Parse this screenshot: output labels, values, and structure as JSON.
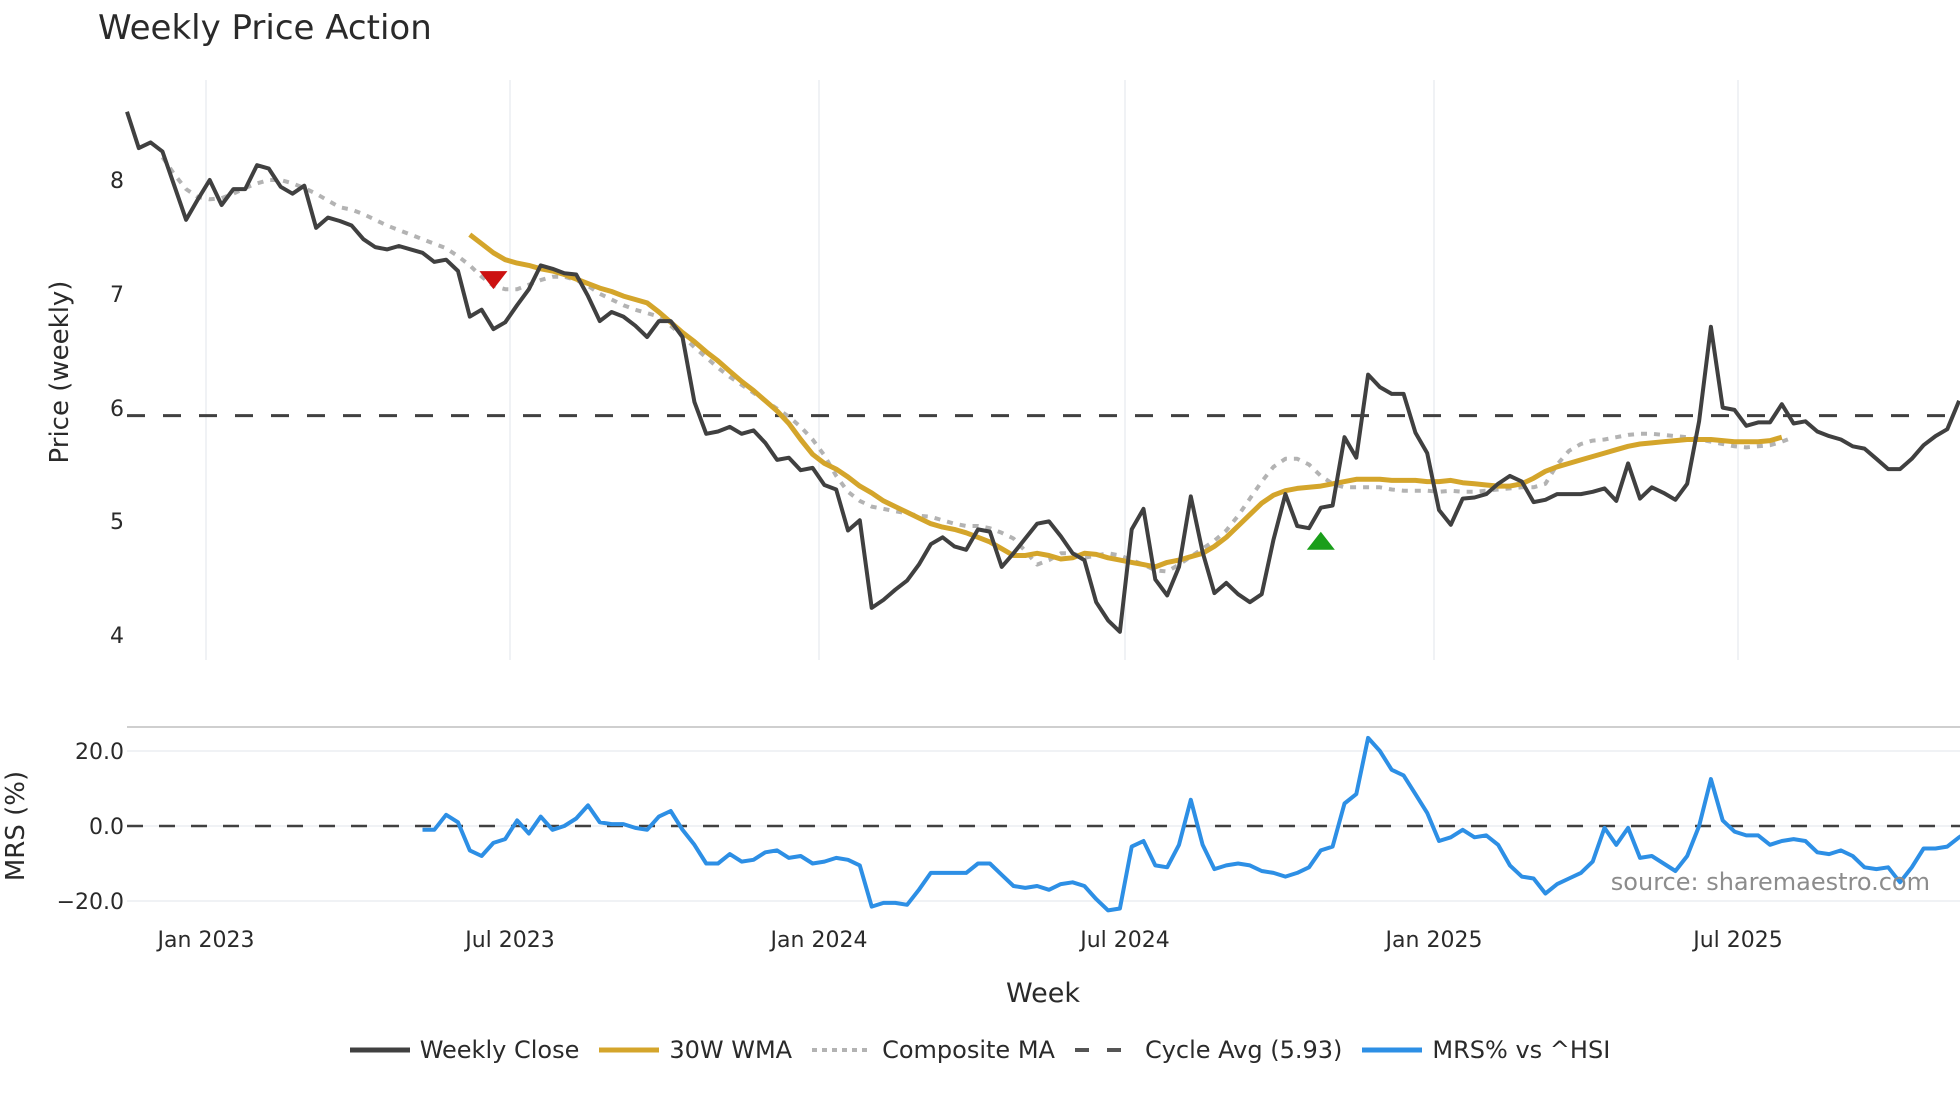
{
  "chart_data": [
    {
      "type": "line",
      "title": "Weekly Price Action",
      "xlabel": "Week",
      "ylabel": "Price (weekly)",
      "ylim": [
        3.8,
        8.7
      ],
      "yticks": [
        4,
        5,
        6,
        7,
        8
      ],
      "xticks": [
        "Jan 2023",
        "Jul 2023",
        "Jan 2024",
        "Jul 2024",
        "Jan 2025",
        "Jul 2025"
      ],
      "grid": "vertical",
      "series": [
        {
          "name": "Weekly Close",
          "color": "#404040",
          "start_week_index": 0,
          "values": [
            8.6,
            8.28,
            8.33,
            8.25,
            7.95,
            7.65,
            7.83,
            8.0,
            7.78,
            7.92,
            7.92,
            8.13,
            8.1,
            7.94,
            7.88,
            7.95,
            7.58,
            7.67,
            7.64,
            7.6,
            7.48,
            7.41,
            7.39,
            7.42,
            7.39,
            7.36,
            7.28,
            7.3,
            7.2,
            6.8,
            6.86,
            6.69,
            6.75,
            6.9,
            7.04,
            7.25,
            7.22,
            7.18,
            7.17,
            6.98,
            6.76,
            6.84,
            6.8,
            6.72,
            6.62,
            6.76,
            6.76,
            6.62,
            6.05,
            5.77,
            5.79,
            5.83,
            5.77,
            5.8,
            5.69,
            5.54,
            5.56,
            5.45,
            5.47,
            5.32,
            5.28,
            4.92,
            5.01,
            4.24,
            4.31,
            4.4,
            4.48,
            4.62,
            4.8,
            4.86,
            4.78,
            4.75,
            4.93,
            4.91,
            4.6,
            4.72,
            4.85,
            4.98,
            5.0,
            4.87,
            4.72,
            4.66,
            4.29,
            4.13,
            4.03,
            4.93,
            5.11,
            4.49,
            4.35,
            4.6,
            5.22,
            4.73,
            4.37,
            4.46,
            4.36,
            4.29,
            4.36,
            4.84,
            5.24,
            4.96,
            4.94,
            5.12,
            5.14,
            5.74,
            5.56,
            6.29,
            6.18,
            6.12,
            6.12,
            5.78,
            5.6,
            5.1,
            4.97,
            5.2,
            5.21,
            5.24,
            5.33,
            5.4,
            5.35,
            5.17,
            5.19,
            5.24,
            5.24,
            5.24,
            5.26,
            5.29,
            5.18,
            5.51,
            5.2,
            5.3,
            5.25,
            5.19,
            5.33,
            5.88,
            6.71,
            6.0,
            5.98,
            5.84,
            5.87,
            5.87,
            6.03,
            5.86,
            5.88,
            5.79,
            5.75,
            5.72,
            5.66,
            5.64,
            5.55,
            5.46,
            5.46,
            5.55,
            5.67,
            5.75,
            5.81,
            6.06
          ]
        },
        {
          "name": "30W WMA",
          "color": "#d4a52b",
          "start_week_index": 29,
          "values": [
            7.52,
            7.44,
            7.36,
            7.3,
            7.27,
            7.25,
            7.22,
            7.2,
            7.17,
            7.13,
            7.09,
            7.05,
            7.02,
            6.98,
            6.95,
            6.92,
            6.84,
            6.75,
            6.66,
            6.58,
            6.49,
            6.41,
            6.32,
            6.23,
            6.15,
            6.06,
            5.97,
            5.86,
            5.72,
            5.59,
            5.51,
            5.46,
            5.39,
            5.31,
            5.25,
            5.18,
            5.13,
            5.08,
            5.03,
            4.98,
            4.95,
            4.93,
            4.9,
            4.86,
            4.82,
            4.76,
            4.7,
            4.7,
            4.72,
            4.7,
            4.67,
            4.68,
            4.72,
            4.71,
            4.68,
            4.66,
            4.64,
            4.62,
            4.6,
            4.64,
            4.66,
            4.69,
            4.72,
            4.78,
            4.86,
            4.96,
            5.06,
            5.16,
            5.23,
            5.27,
            5.29,
            5.3,
            5.31,
            5.33,
            5.35,
            5.37,
            5.37,
            5.37,
            5.36,
            5.36,
            5.36,
            5.35,
            5.35,
            5.36,
            5.34,
            5.33,
            5.32,
            5.31,
            5.31,
            5.33,
            5.38,
            5.44,
            5.48,
            5.51,
            5.54,
            5.57,
            5.6,
            5.63,
            5.66,
            5.68,
            5.69,
            5.7,
            5.71,
            5.72,
            5.72,
            5.72,
            5.71,
            5.7,
            5.7,
            5.7,
            5.71,
            5.74
          ]
        },
        {
          "name": "Composite MA",
          "color": "#b3b3b3",
          "start_week_index": 3,
          "values": [
            8.2,
            8.05,
            7.92,
            7.85,
            7.83,
            7.84,
            7.88,
            7.93,
            7.97,
            8.0,
            8.0,
            7.97,
            7.93,
            7.88,
            7.82,
            7.76,
            7.74,
            7.7,
            7.65,
            7.6,
            7.56,
            7.52,
            7.48,
            7.44,
            7.4,
            7.33,
            7.25,
            7.15,
            7.07,
            7.04,
            7.04,
            7.08,
            7.12,
            7.15,
            7.15,
            7.12,
            7.07,
            7.0,
            6.95,
            6.9,
            6.86,
            6.83,
            6.8,
            6.72,
            6.63,
            6.53,
            6.44,
            6.35,
            6.27,
            6.2,
            6.13,
            6.06,
            5.99,
            5.92,
            5.83,
            5.72,
            5.58,
            5.4,
            5.26,
            5.18,
            5.13,
            5.11,
            5.09,
            5.07,
            5.05,
            5.04,
            5.01,
            4.98,
            4.96,
            4.96,
            4.94,
            4.9,
            4.85,
            4.74,
            4.62,
            4.66,
            4.72,
            4.72,
            4.68,
            4.7,
            4.72,
            4.7,
            4.66,
            4.62,
            4.57,
            4.56,
            4.62,
            4.69,
            4.76,
            4.83,
            4.92,
            5.05,
            5.2,
            5.35,
            5.48,
            5.55,
            5.55,
            5.5,
            5.4,
            5.33,
            5.3,
            5.3,
            5.3,
            5.3,
            5.28,
            5.27,
            5.27,
            5.27,
            5.26,
            5.27,
            5.26,
            5.26,
            5.27,
            5.28,
            5.29,
            5.3,
            5.3,
            5.33,
            5.5,
            5.62,
            5.68,
            5.71,
            5.72,
            5.74,
            5.76,
            5.77,
            5.77,
            5.76,
            5.75,
            5.74,
            5.72,
            5.7,
            5.68,
            5.66,
            5.65,
            5.66,
            5.67,
            5.7,
            5.74
          ]
        },
        {
          "name": "Cycle Avg (5.93)",
          "color": "#404040",
          "constant": 5.93
        }
      ],
      "markers": [
        {
          "type": "sell",
          "shape": "triangle-down",
          "color": "#cc1111",
          "week_index": 31,
          "value": 7.12
        },
        {
          "type": "buy",
          "shape": "triangle-up",
          "color": "#1a9e1a",
          "week_index": 101,
          "value": 4.83
        }
      ]
    },
    {
      "type": "line",
      "title": "",
      "xlabel": "Week",
      "ylabel": "MRS (%)",
      "ylim": [
        -24,
        26
      ],
      "yticks": [
        "20.0",
        "0.0",
        "−20.0"
      ],
      "series": [
        {
          "name": "MRS% vs ^HSI",
          "color": "#2d8fe5",
          "start_week_index": 25,
          "values": [
            -1,
            -1,
            3,
            1,
            -6.5,
            -8,
            -4.5,
            -3.5,
            1.5,
            -2,
            2.5,
            -1,
            0,
            2,
            5.5,
            1,
            0.5,
            0.5,
            -0.5,
            -1,
            2.5,
            4,
            -1,
            -5,
            -10,
            -10,
            -7.5,
            -9.5,
            -9,
            -7,
            -6.5,
            -8.5,
            -8,
            -10,
            -9.5,
            -8.5,
            -9,
            -10.5,
            -21.5,
            -20.5,
            -20.5,
            -21,
            -17,
            -12.5,
            -12.5,
            -12.5,
            -12.5,
            -10,
            -10,
            -13,
            -16,
            -16.5,
            -16,
            -17,
            -15.5,
            -15,
            -16,
            -19.5,
            -22.5,
            -22,
            -5.5,
            -4,
            -10.5,
            -11,
            -5,
            7,
            -5,
            -11.5,
            -10.5,
            -10,
            -10.5,
            -12,
            -12.5,
            -13.5,
            -12.5,
            -11,
            -6.5,
            -5.5,
            6,
            8.5,
            23.5,
            20,
            15,
            13.5,
            8.5,
            3.5,
            -4,
            -3,
            -1,
            -3,
            -2.5,
            -5,
            -10.5,
            -13.5,
            -14,
            -18,
            -15.5,
            -14,
            -12.5,
            -9.5,
            -0.5,
            -5,
            -0.5,
            -8.5,
            -8,
            -10,
            -12,
            -8,
            0,
            12.5,
            1.5,
            -1.5,
            -2.5,
            -2.5,
            -5,
            -4,
            -3.5,
            -4,
            -7,
            -7.5,
            -6.5,
            -8,
            -11,
            -11.5,
            -11,
            -15,
            -11,
            -6,
            -6,
            -5.5,
            -3,
            -1
          ]
        },
        {
          "name": "zero-line",
          "color": "#404040",
          "constant": 0
        }
      ]
    }
  ],
  "title": "Weekly Price Action",
  "axes": {
    "price_ylabel": "Price (weekly)",
    "mrs_ylabel": "MRS (%)",
    "xlabel": "Week",
    "price_ticks": [
      "8",
      "7",
      "6",
      "5",
      "4"
    ],
    "mrs_ticks": [
      "20.0",
      "0.0",
      "−20.0"
    ],
    "x_ticks": [
      "Jan 2023",
      "Jul 2023",
      "Jan 2024",
      "Jul 2024",
      "Jan 2025",
      "Jul 2025"
    ]
  },
  "watermark": "source: sharemaestro.com",
  "legend": [
    {
      "label": "Weekly Close",
      "color": "#404040",
      "style": "solid"
    },
    {
      "label": "30W WMA",
      "color": "#d4a52b",
      "style": "solid"
    },
    {
      "label": "Composite MA",
      "color": "#b3b3b3",
      "style": "dotted"
    },
    {
      "label": "Cycle Avg (5.93)",
      "color": "#555555",
      "style": "dashed"
    },
    {
      "label": "MRS% vs ^HSI",
      "color": "#2d8fe5",
      "style": "solid"
    }
  ]
}
